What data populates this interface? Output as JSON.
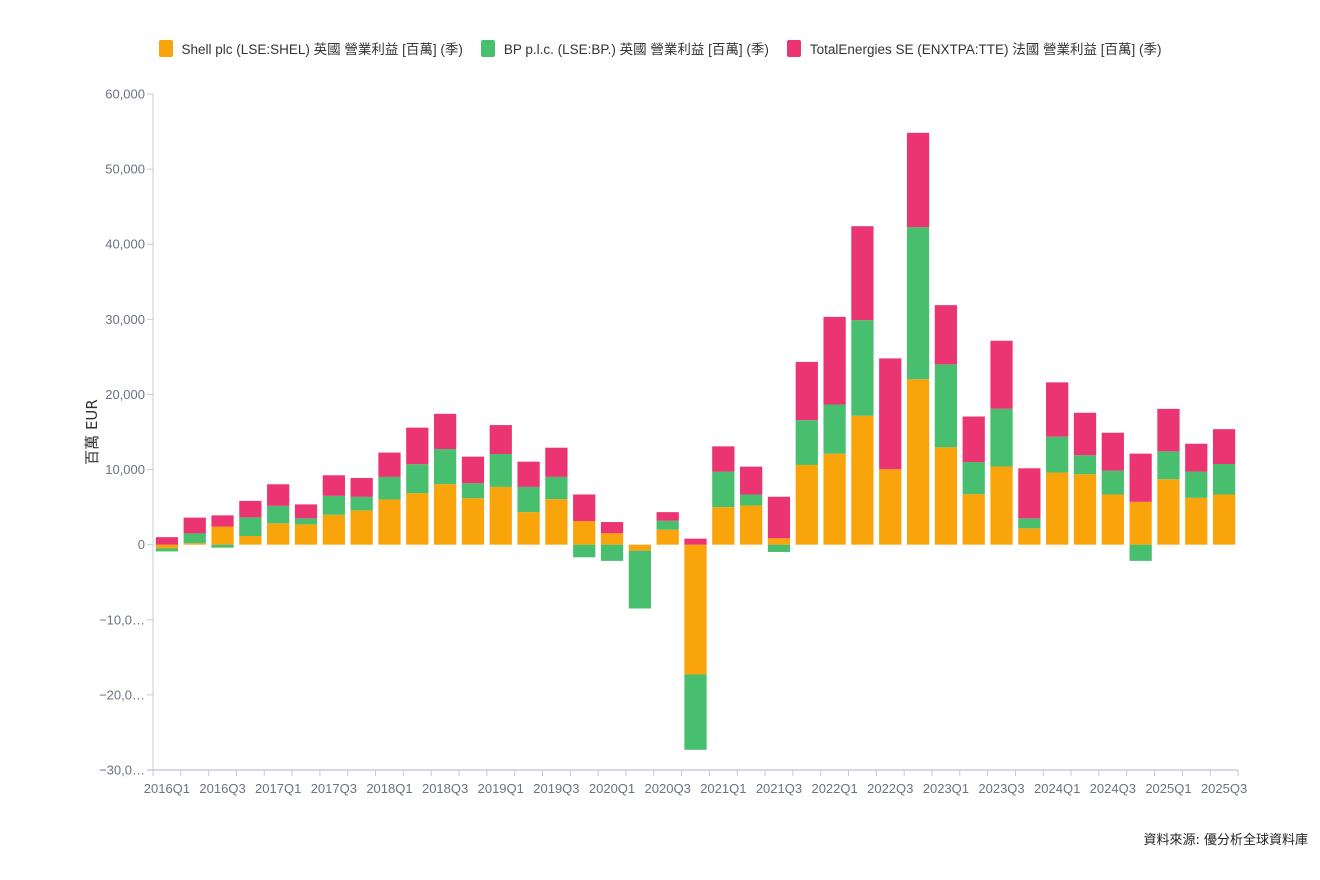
{
  "chart_data": {
    "type": "bar",
    "stacked": true,
    "title": "",
    "xlabel": "",
    "ylabel": "百萬 EUR",
    "ylim": [
      -30000,
      60000
    ],
    "yticks": [
      60000,
      50000,
      40000,
      30000,
      20000,
      10000,
      0,
      -10000,
      -20000,
      -30000
    ],
    "ytick_labels": [
      "60,000",
      "50,000",
      "40,000",
      "30,000",
      "20,000",
      "10,000",
      "0",
      "−10,0…",
      "−20,0…",
      "−30,0…"
    ],
    "grid": false,
    "legend_position": "top-center",
    "categories": [
      "2016Q1",
      "2016Q2",
      "2016Q3",
      "2016Q4",
      "2017Q1",
      "2017Q2",
      "2017Q3",
      "2017Q4",
      "2018Q1",
      "2018Q2",
      "2018Q3",
      "2018Q4",
      "2019Q1",
      "2019Q2",
      "2019Q3",
      "2019Q4",
      "2020Q1",
      "2020Q2",
      "2020Q3",
      "2020Q4",
      "2021Q1",
      "2021Q2",
      "2021Q3",
      "2021Q4",
      "2022Q1",
      "2022Q2",
      "2022Q3",
      "2022Q4",
      "2023Q1",
      "2023Q2",
      "2023Q3",
      "2023Q4",
      "2024Q1",
      "2024Q2",
      "2024Q3",
      "2024Q4",
      "2025Q1",
      "2025Q2",
      "2025Q3"
    ],
    "xtick_labels": [
      "2016Q1",
      "2016Q3",
      "2017Q1",
      "2017Q3",
      "2018Q1",
      "2018Q3",
      "2019Q1",
      "2019Q3",
      "2020Q1",
      "2020Q3",
      "2021Q1",
      "2021Q3",
      "2022Q1",
      "2022Q3",
      "2023Q1",
      "2023Q3",
      "2024Q1",
      "2024Q3",
      "2025Q1",
      "2025Q3"
    ],
    "series": [
      {
        "name": "Shell plc (LSE:SHEL) 英國 營業利益 [百萬] (季)",
        "color": "#F9A40A",
        "values": [
          -500,
          200,
          2400,
          1150,
          2840,
          2700,
          3980,
          4560,
          6020,
          6860,
          8050,
          6190,
          7690,
          4330,
          6060,
          3140,
          1510,
          -800,
          1990,
          -17280,
          5000,
          5220,
          850,
          10610,
          12120,
          17160,
          10040,
          22020,
          12960,
          6720,
          10400,
          2170,
          9600,
          9380,
          6680,
          5700,
          8710,
          6230,
          6680
        ]
      },
      {
        "name": "BP p.l.c. (LSE:BP.) 英國 營業利益 [百萬] (季)",
        "color": "#48BF6F",
        "values": [
          -400,
          1300,
          -400,
          2480,
          2330,
          800,
          2520,
          1800,
          3000,
          3850,
          4680,
          1990,
          4380,
          3360,
          2960,
          -1680,
          -2160,
          -7700,
          1190,
          -10030,
          4730,
          1460,
          -970,
          5970,
          6540,
          12730,
          0,
          20250,
          11050,
          4280,
          7690,
          1330,
          4770,
          2520,
          3180,
          -2160,
          3710,
          3500,
          4060
        ]
      },
      {
        "name": "TotalEnergies SE (ENXTPA:TTE) 法國 營業利益 [百萬] (季)",
        "color": "#EB3573",
        "values": [
          1000,
          2100,
          1500,
          2200,
          2870,
          1860,
          2740,
          2520,
          3240,
          4870,
          4690,
          3540,
          3850,
          3360,
          3890,
          3540,
          1500,
          0,
          1150,
          800,
          3360,
          3710,
          5530,
          7750,
          11670,
          12510,
          14760,
          12560,
          7880,
          6060,
          9060,
          6670,
          7240,
          5660,
          5040,
          6420,
          5660,
          3710,
          4640
        ]
      }
    ]
  },
  "legend": {
    "items": [
      {
        "label": "Shell plc (LSE:SHEL) 英國 營業利益 [百萬] (季)",
        "color": "#F9A40A"
      },
      {
        "label": "BP p.l.c. (LSE:BP.) 英國 營業利益 [百萬] (季)",
        "color": "#48BF6F"
      },
      {
        "label": "TotalEnergies SE (ENXTPA:TTE) 法國 營業利益 [百萬] (季)",
        "color": "#EB3573"
      }
    ]
  },
  "footer": {
    "source": "資料來源: 優分析全球資料庫"
  }
}
